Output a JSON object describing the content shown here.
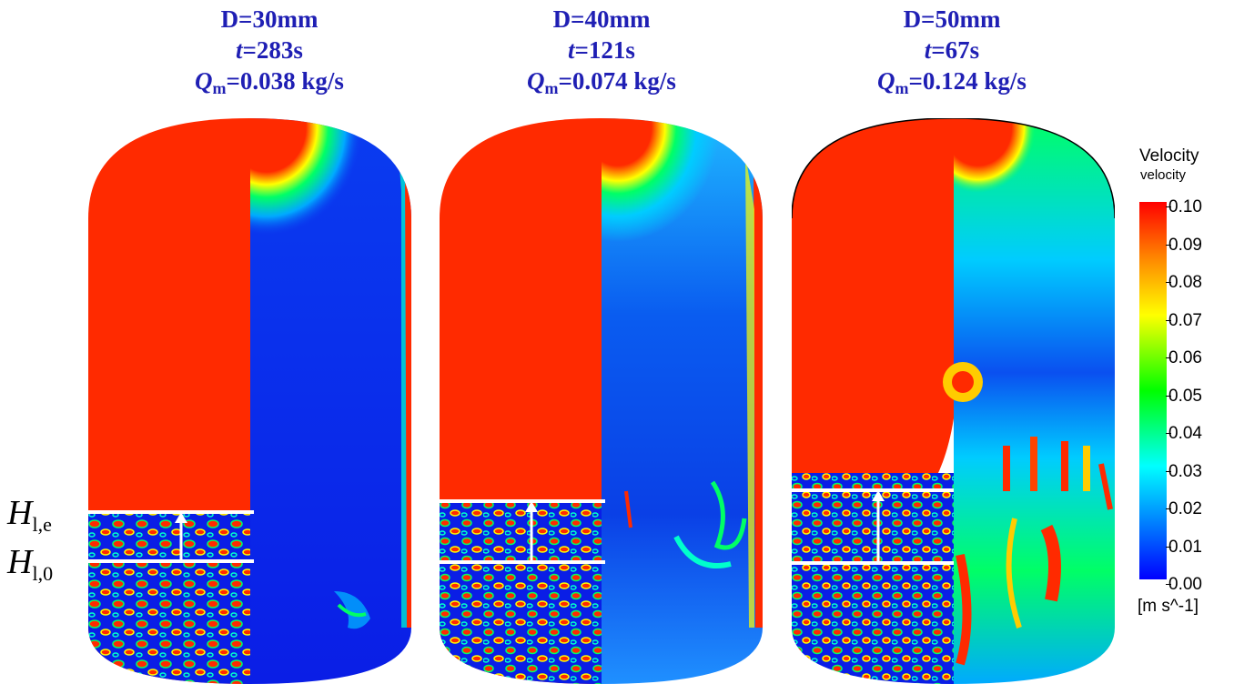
{
  "cases": [
    {
      "d": "D=30mm",
      "t_label": "t",
      "t_value": "=283s",
      "q_label": "Q",
      "q_sub": "m",
      "q_value": "=0.038 kg/s"
    },
    {
      "d": "D=40mm",
      "t_label": "t",
      "t_value": "=121s",
      "q_label": "Q",
      "q_sub": "m",
      "q_value": "=0.074 kg/s"
    },
    {
      "d": "D=50mm",
      "t_label": "t",
      "t_value": "=67s",
      "q_label": "Q",
      "q_sub": "m",
      "q_value": "=0.124 kg/s"
    }
  ],
  "levels": {
    "upper": {
      "symbol": "H",
      "sub": "l,e"
    },
    "lower": {
      "symbol": "H",
      "sub": "l,0"
    }
  },
  "legend": {
    "title": "Velocity",
    "subtitle": "velocity",
    "ticks": [
      "0.10",
      "0.09",
      "0.08",
      "0.07",
      "0.06",
      "0.05",
      "0.04",
      "0.03",
      "0.02",
      "0.01",
      "0.00"
    ],
    "unit": "[m s^-1]",
    "min": 0.0,
    "max": 0.1
  },
  "colors": {
    "title": "#1f1fb4",
    "red": "#ff2a00",
    "blue": "#0a1ee6"
  }
}
